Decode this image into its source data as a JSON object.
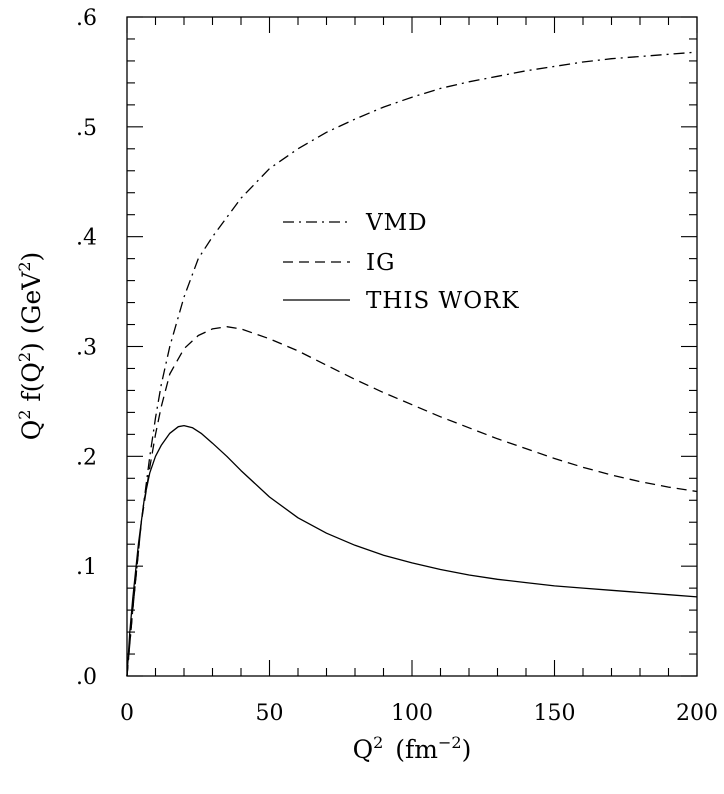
{
  "chart_data": {
    "type": "line",
    "xlim": [
      0,
      200
    ],
    "ylim": [
      0,
      0.6
    ],
    "x_ticks": [
      0,
      50,
      100,
      150,
      200
    ],
    "x_tick_labels": [
      "0",
      "50",
      "100",
      "150",
      "200"
    ],
    "y_ticks": [
      0,
      0.1,
      0.2,
      0.3,
      0.4,
      0.5,
      0.6
    ],
    "y_tick_labels": [
      ".0",
      ".1",
      ".2",
      ".3",
      ".4",
      ".5",
      ".6"
    ],
    "xlabel": {
      "base": "Q",
      "sup": "2",
      "unit_open": "(fm",
      "unit_sup": "−2",
      "unit_close": ")"
    },
    "ylabel": {
      "part1": "Q",
      "sup1": "2",
      "part2": " f(Q",
      "sup2": "2",
      "part3": ")  (GeV",
      "sup3": "2",
      "part4": ")"
    },
    "grid": false,
    "legend_position": "center",
    "series": [
      {
        "name": "VMD",
        "dash": "dashdot",
        "x": [
          0,
          2,
          5,
          8,
          10,
          12,
          15,
          20,
          25,
          30,
          40,
          50,
          60,
          70,
          80,
          90,
          100,
          110,
          120,
          130,
          140,
          150,
          160,
          170,
          180,
          190,
          200
        ],
        "y": [
          0.0,
          0.06,
          0.14,
          0.2,
          0.235,
          0.265,
          0.3,
          0.345,
          0.38,
          0.4,
          0.435,
          0.462,
          0.48,
          0.495,
          0.507,
          0.518,
          0.527,
          0.535,
          0.541,
          0.546,
          0.551,
          0.555,
          0.559,
          0.562,
          0.564,
          0.566,
          0.568
        ]
      },
      {
        "name": "IG",
        "dash": "dashed",
        "x": [
          0,
          2,
          5,
          8,
          10,
          12,
          15,
          20,
          25,
          30,
          35,
          40,
          50,
          60,
          70,
          80,
          90,
          100,
          110,
          120,
          130,
          140,
          150,
          160,
          170,
          180,
          190,
          200
        ],
        "y": [
          0.0,
          0.06,
          0.14,
          0.19,
          0.22,
          0.245,
          0.275,
          0.298,
          0.31,
          0.316,
          0.318,
          0.316,
          0.307,
          0.296,
          0.283,
          0.27,
          0.258,
          0.247,
          0.236,
          0.226,
          0.216,
          0.207,
          0.198,
          0.19,
          0.183,
          0.177,
          0.172,
          0.168
        ]
      },
      {
        "name": "THIS WORK",
        "dash": "solid",
        "x": [
          0,
          1,
          2,
          4,
          6,
          8,
          10,
          12,
          15,
          18,
          20,
          23,
          26,
          30,
          35,
          40,
          50,
          60,
          70,
          80,
          90,
          100,
          110,
          120,
          130,
          140,
          150,
          160,
          170,
          180,
          190,
          200
        ],
        "y": [
          0.0,
          0.04,
          0.07,
          0.12,
          0.16,
          0.185,
          0.2,
          0.21,
          0.221,
          0.227,
          0.228,
          0.226,
          0.221,
          0.212,
          0.2,
          0.187,
          0.163,
          0.144,
          0.13,
          0.119,
          0.11,
          0.103,
          0.097,
          0.092,
          0.088,
          0.085,
          0.082,
          0.08,
          0.078,
          0.076,
          0.074,
          0.072
        ]
      }
    ]
  }
}
